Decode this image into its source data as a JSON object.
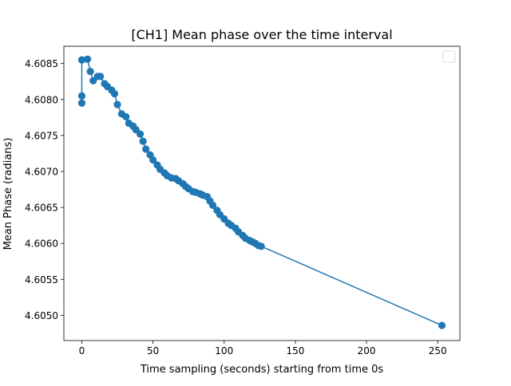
{
  "chart_data": {
    "type": "line",
    "title": "[CH1] Mean phase over the time interval",
    "xlabel": "Time sampling (seconds) starting from time 0s",
    "ylabel": "Mean Phase (radians)",
    "xlim": [
      -12.6,
      265.6
    ],
    "ylim": [
      4.60465,
      4.60874
    ],
    "xticks": [
      0,
      50,
      100,
      150,
      200,
      250
    ],
    "yticks": [
      4.605,
      4.6055,
      4.606,
      4.6065,
      4.607,
      4.6075,
      4.608,
      4.6085
    ],
    "xtick_labels": [
      "0",
      "50",
      "100",
      "150",
      "200",
      "250"
    ],
    "ytick_labels": [
      "4.6050",
      "4.6055",
      "4.6060",
      "4.6065",
      "4.6070",
      "4.6075",
      "4.6080",
      "4.6085"
    ],
    "grid": false,
    "legend": "top-right (empty)",
    "series_color": "#1f77b4",
    "series": [
      {
        "marker": "circle",
        "x": [
          0,
          0,
          0,
          4,
          6,
          8,
          11,
          13,
          16,
          18,
          21,
          23,
          25,
          28,
          31,
          33,
          36,
          38,
          41,
          43,
          45,
          48,
          50,
          53,
          55,
          58,
          60,
          63,
          66,
          68,
          71,
          73,
          75,
          78,
          80,
          83,
          85,
          88,
          90,
          92,
          95,
          97,
          100,
          103,
          105,
          108,
          110,
          113,
          115,
          118,
          120,
          122,
          124,
          126,
          253
        ],
        "y": [
          4.60805,
          4.60795,
          4.60855,
          4.60856,
          4.60839,
          4.60826,
          4.60832,
          4.60832,
          4.60822,
          4.60818,
          4.60813,
          4.60808,
          4.60793,
          4.6078,
          4.60776,
          4.60767,
          4.60763,
          4.60758,
          4.60752,
          4.60742,
          4.60731,
          4.60723,
          4.60716,
          4.60709,
          4.60703,
          4.60698,
          4.60694,
          4.60691,
          4.6069,
          4.60687,
          4.60683,
          4.60679,
          4.60676,
          4.60672,
          4.60671,
          4.60669,
          4.60667,
          4.60665,
          4.60659,
          4.60653,
          4.60646,
          4.6064,
          4.60634,
          4.60628,
          4.60625,
          4.60621,
          4.60616,
          4.60611,
          4.60607,
          4.60604,
          4.60602,
          4.606,
          4.60597,
          4.60596,
          4.60486
        ]
      }
    ]
  }
}
